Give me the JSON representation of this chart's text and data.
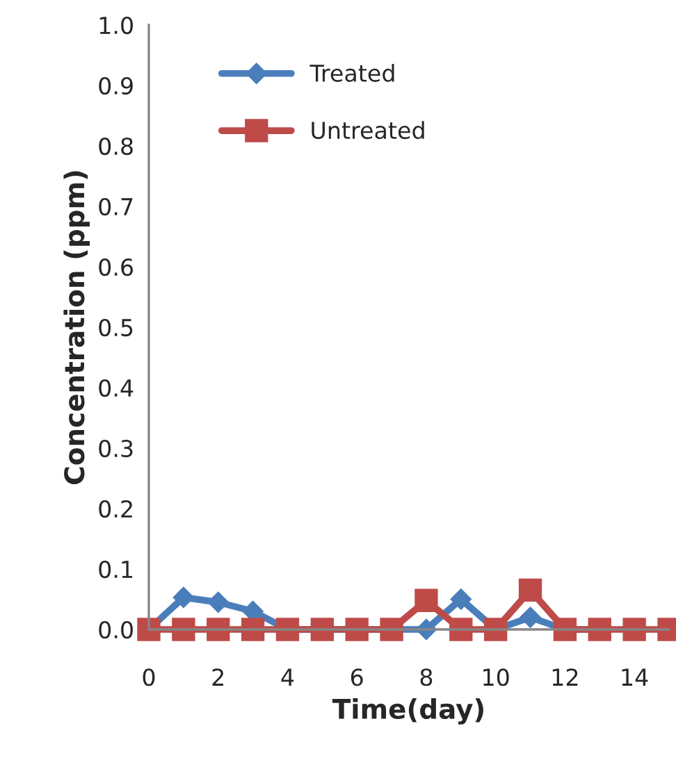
{
  "chart_data": {
    "type": "line",
    "xlabel": "Time(day)",
    "ylabel": "Concentration (ppm)",
    "x": [
      0,
      1,
      2,
      3,
      4,
      5,
      6,
      7,
      8,
      9,
      10,
      11,
      12,
      13,
      14,
      15
    ],
    "xlim": [
      0,
      15
    ],
    "xticks": [
      0,
      2,
      4,
      6,
      8,
      10,
      12,
      14
    ],
    "ylim": [
      0,
      1.0
    ],
    "yticks": [
      {
        "value": 0,
        "label": "0.0"
      },
      {
        "value": 0.1,
        "label": "0.1"
      },
      {
        "value": 0.2,
        "label": "0.2"
      },
      {
        "value": 0.3,
        "label": "0.3"
      },
      {
        "value": 0.4,
        "label": "0.4"
      },
      {
        "value": 0.5,
        "label": "0.5"
      },
      {
        "value": 0.6,
        "label": "0.6"
      },
      {
        "value": 0.7,
        "label": "0.7"
      },
      {
        "value": 0.8,
        "label": "0.8"
      },
      {
        "value": 0.9,
        "label": "0.9"
      },
      {
        "value": 1.0,
        "label": "1.0"
      }
    ],
    "grid": false,
    "legend": "top left",
    "line_style": "solid",
    "series": [
      {
        "name": "Treated",
        "color": "#4a7ebb",
        "marker": "diamond",
        "values": [
          0,
          0.053,
          0.045,
          0.03,
          0,
          0,
          0,
          0,
          0,
          0.05,
          0,
          0.02,
          0,
          0,
          null,
          null
        ]
      },
      {
        "name": "Untreated",
        "color": "#be4b48",
        "marker": "square",
        "values": [
          0,
          0,
          0,
          0,
          0,
          0,
          0,
          0,
          0.048,
          0,
          0,
          0.065,
          0,
          0,
          0,
          0
        ]
      }
    ]
  }
}
